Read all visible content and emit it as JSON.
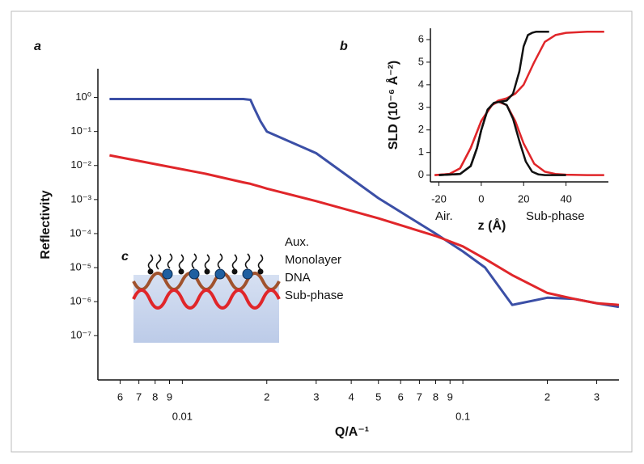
{
  "chart_data": [
    {
      "type": "line",
      "panel_label": "a",
      "x_label": "Q/A⁻¹",
      "y_label": "Reflectivity",
      "log_x": true,
      "log_y": true,
      "xlim": [
        0.005,
        0.36
      ],
      "ylim": [
        5e-09,
        7
      ],
      "xticks": [
        {
          "value": 0.006,
          "label": "6"
        },
        {
          "value": 0.007,
          "label": "7"
        },
        {
          "value": 0.008,
          "label": "8"
        },
        {
          "value": 0.009,
          "label": "9"
        },
        0.01,
        {
          "value": 0.02,
          "label": "2"
        },
        {
          "value": 0.03,
          "label": "3"
        },
        {
          "value": 0.04,
          "label": "4"
        },
        {
          "value": 0.05,
          "label": "5"
        },
        {
          "value": 0.06,
          "label": "6"
        },
        {
          "value": 0.07,
          "label": "7"
        },
        {
          "value": 0.08,
          "label": "8"
        },
        {
          "value": 0.09,
          "label": "9"
        },
        0.1,
        {
          "value": 0.2,
          "label": "2"
        },
        {
          "value": 0.3,
          "label": "3"
        }
      ],
      "yticks": [
        {
          "value": 1,
          "label": "10⁰"
        },
        {
          "value": 0.1,
          "label": "10⁻¹"
        },
        {
          "value": 0.01,
          "label": "10⁻²"
        },
        {
          "value": 0.001,
          "label": "10⁻³"
        },
        {
          "value": 0.0001,
          "label": "10⁻⁴"
        },
        {
          "value": 1e-05,
          "label": "10⁻⁵"
        },
        {
          "value": 1e-06,
          "label": "10⁻⁶"
        },
        {
          "value": 1e-07,
          "label": "10⁻⁷"
        }
      ],
      "x": [
        0.0055,
        0.008,
        0.012,
        0.0165,
        0.0175,
        0.018,
        0.019,
        0.02,
        0.03,
        0.05,
        0.08,
        0.1,
        0.12,
        0.15,
        0.2,
        0.25,
        0.3,
        0.36
      ],
      "series": [
        {
          "color": "#3b4fa6",
          "values": [
            0.9,
            0.9,
            0.9,
            0.9,
            0.85,
            0.5,
            0.2,
            0.1,
            0.023,
            0.0011,
            0.0001,
            3e-05,
            1e-05,
            8e-07,
            1.3e-06,
            1.2e-06,
            9e-07,
            7e-07
          ]
        },
        {
          "color": "#e0262a",
          "values": [
            0.02,
            0.011,
            0.0058,
            0.0032,
            0.0029,
            0.0027,
            0.0024,
            0.0021,
            0.0009,
            0.00028,
            8.5e-05,
            4.2e-05,
            1.8e-05,
            6e-06,
            1.8e-06,
            1.2e-06,
            9e-07,
            8e-07
          ]
        }
      ]
    },
    {
      "type": "line",
      "panel_label": "b",
      "x_label": "z (Å)",
      "y_label": "SLD (10⁻⁶ Å⁻²)",
      "xlim": [
        -24,
        60
      ],
      "ylim": [
        -0.3,
        6.5
      ],
      "xticks": [
        -20,
        0,
        20,
        40
      ],
      "yticks": [
        0,
        1,
        2,
        3,
        4,
        5,
        6
      ],
      "annotations": [
        "Air.",
        "Sub-phase"
      ],
      "series": [
        {
          "color": "#e0262a",
          "x": [
            -22,
            -15,
            -10,
            -5,
            0,
            5,
            8,
            12,
            16,
            20,
            25,
            30,
            35,
            40,
            50,
            58
          ],
          "values": [
            0,
            0.05,
            0.3,
            1.2,
            2.4,
            3.1,
            3.3,
            3.4,
            3.6,
            4,
            5,
            5.9,
            6.2,
            6.3,
            6.35,
            6.35
          ]
        },
        {
          "color": "#e0262a",
          "x": [
            -22,
            -15,
            -10,
            -5,
            0,
            5,
            8,
            12,
            16,
            20,
            25,
            30,
            35,
            40,
            50,
            58
          ],
          "values": [
            0,
            0.05,
            0.3,
            1.2,
            2.4,
            3.1,
            3.25,
            3.1,
            2.4,
            1.4,
            0.5,
            0.15,
            0.05,
            0.02,
            0,
            0
          ]
        },
        {
          "color": "#111111",
          "x": [
            -20,
            -10,
            -5,
            -2,
            0,
            3,
            6,
            9,
            12,
            15,
            18,
            20,
            22,
            24,
            26,
            32
          ],
          "values": [
            0,
            0.05,
            0.4,
            1.2,
            2,
            2.9,
            3.2,
            3.25,
            3.3,
            3.6,
            4.6,
            5.7,
            6.2,
            6.3,
            6.35,
            6.35
          ]
        },
        {
          "color": "#111111",
          "x": [
            -20,
            -10,
            -5,
            -2,
            0,
            3,
            6,
            9,
            12,
            15,
            18,
            21,
            24,
            27,
            30,
            40
          ],
          "values": [
            0,
            0.05,
            0.4,
            1.2,
            2,
            2.9,
            3.2,
            3.25,
            3.1,
            2.5,
            1.5,
            0.6,
            0.15,
            0.03,
            0,
            0
          ]
        }
      ]
    }
  ],
  "diagram": {
    "panel_label": "c",
    "layers": [
      "Aux.",
      "Monolayer",
      "DNA",
      "Sub-phase"
    ]
  }
}
